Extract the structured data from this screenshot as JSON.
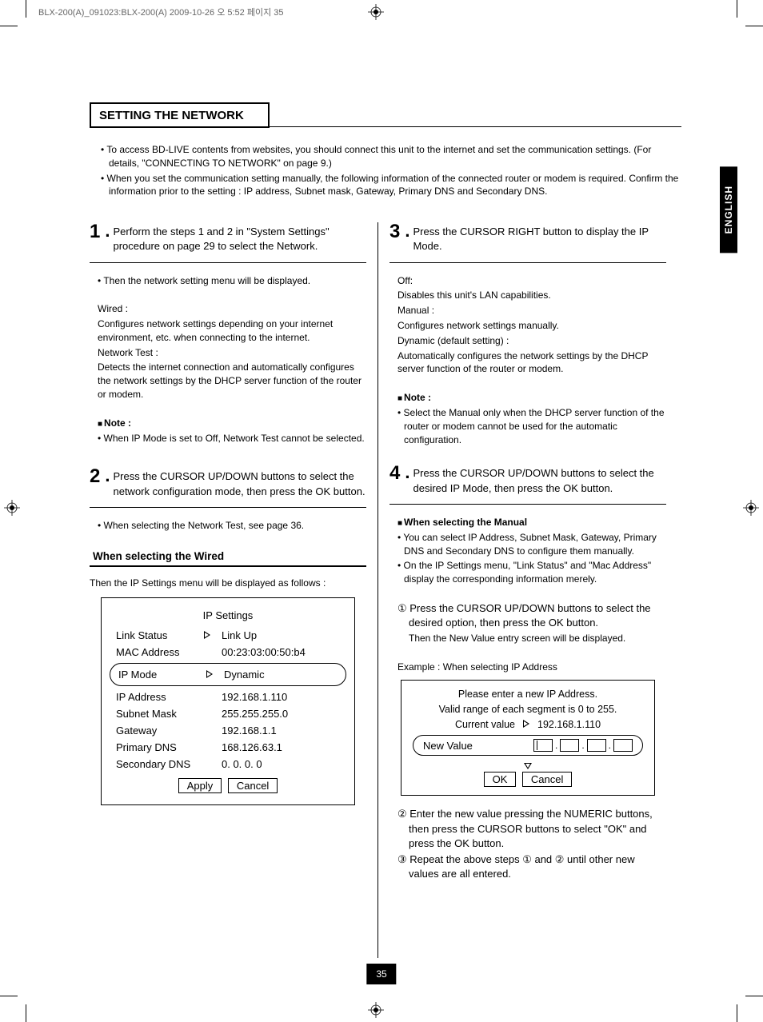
{
  "header_info": "BLX-200(A)_091023:BLX-200(A)  2009-10-26  오    5:52  페이지 35",
  "english_tab": "ENGLISH",
  "page_number": "35",
  "section_title": "SETTING THE NETWORK",
  "intro": [
    "• To access BD-LIVE contents from websites, you should connect this unit to the internet and set the communication settings. (For details, \"CONNECTING TO NETWORK\" on page 9.)",
    "• When you set the communication setting manually, the following information of the connected router or modem is required. Confirm the information prior to the setting : IP address, Subnet mask, Gateway, Primary DNS and Secondary DNS."
  ],
  "step1": {
    "num": "1",
    "text": "Perform the steps 1 and 2 in \"System Settings\" procedure on page 29 to select the Network.",
    "sub_bullet": "• Then the network setting menu will be displayed.",
    "wired_label": "Wired :",
    "wired_text": "Configures network settings depending on your internet environment, etc. when connecting to the internet.",
    "nettest_label": "Network Test :",
    "nettest_text": "Detects the internet connection and automatically configures the network settings by the DHCP server function of the router or modem.",
    "note_label": "Note :",
    "note_text": "• When IP Mode is set to Off, Network Test cannot be selected."
  },
  "step2": {
    "num": "2",
    "text": "Press the CURSOR UP/DOWN buttons to select the network configuration mode, then press the OK button.",
    "sub_bullet": "• When selecting the Network Test, see page 36."
  },
  "wired_sub_title": "When selecting the Wired",
  "wired_sub_text": "Then the IP Settings menu will be displayed as follows :",
  "ip_settings": {
    "title": "IP Settings",
    "rows": [
      {
        "label": "Link Status",
        "arrow": true,
        "value": "Link Up"
      },
      {
        "label": "MAC Address",
        "arrow": false,
        "value": "00:23:03:00:50:b4"
      }
    ],
    "ip_mode_label": "IP Mode",
    "ip_mode_value": "Dynamic",
    "rows2": [
      {
        "label": "IP Address",
        "value": "192.168.1.110"
      },
      {
        "label": "Subnet Mask",
        "value": "255.255.255.0"
      },
      {
        "label": "Gateway",
        "value": "192.168.1.1"
      },
      {
        "label": "Primary DNS",
        "value": "168.126.63.1"
      },
      {
        "label": "Secondary DNS",
        "value": "0. 0. 0. 0"
      }
    ],
    "apply": "Apply",
    "cancel": "Cancel"
  },
  "step3": {
    "num": "3",
    "text": "Press the CURSOR RIGHT button to display the IP Mode.",
    "off_label": "Off:",
    "off_text": "Disables this unit's LAN capabilities.",
    "manual_label": "Manual :",
    "manual_text": "Configures network settings manually.",
    "dynamic_label": "Dynamic (default setting) :",
    "dynamic_text": "Automatically configures the network settings by the DHCP server function of the router or modem.",
    "note_label": "Note :",
    "note_text": "• Select the Manual only when the DHCP server function of the router or modem cannot be used for the automatic configuration."
  },
  "step4": {
    "num": "4",
    "text": "Press the CURSOR UP/DOWN buttons to select the desired IP Mode, then press the OK button.",
    "manual_title": "When selecting the Manual",
    "manual_b1": "• You can select IP Address, Subnet Mask, Gateway, Primary DNS and Secondary DNS to configure them manually.",
    "manual_b2": "• On the IP Settings menu, \"Link Status\" and \"Mac Address\" display the corresponding information merely.",
    "n1": "① Press the CURSOR UP/DOWN  buttons to select the desired option, then press the OK button.",
    "n1b": "Then the New Value entry screen will be displayed.",
    "example": "Example : When selecting IP Address",
    "n2": "② Enter the new value pressing the NUMERIC buttons, then press the CURSOR buttons to select \"OK\" and press the OK button.",
    "n3": "③ Repeat the above steps ① and ② until other new values are all entered."
  },
  "ip_entry": {
    "line1": "Please enter a new IP Address.",
    "line2": "Valid range of each segment is 0 to 255.",
    "cv_label": "Current value",
    "cv_value": "192.168.1.110",
    "nv_label": "New Value",
    "ok": "OK",
    "cancel": "Cancel"
  }
}
